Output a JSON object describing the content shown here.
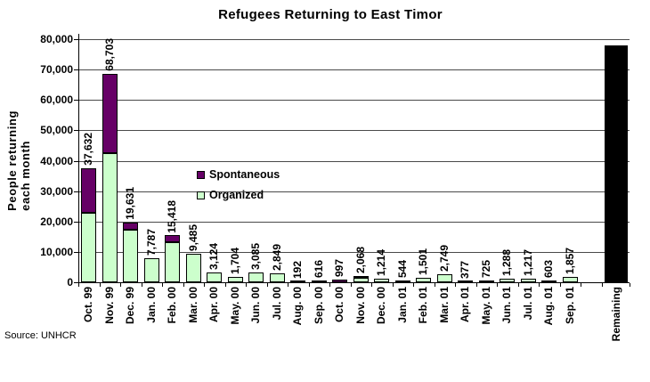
{
  "chart_data": {
    "type": "bar",
    "stacked": true,
    "title": "Refugees Returning to East Timor",
    "ylabel_lines": [
      "People returning",
      "each month"
    ],
    "source": "Source: UNHCR",
    "y_axis": {
      "min": 0,
      "max": 80000,
      "step": 10000,
      "tick_labels": [
        "0",
        "10,000",
        "20,000",
        "30,000",
        "40,000",
        "50,000",
        "60,000",
        "70,000",
        "80,000"
      ]
    },
    "grid": "horizontal",
    "legend": {
      "position": "inside-middle-left",
      "entries": [
        {
          "name": "Spontaneous",
          "color": "#660066"
        },
        {
          "name": "Organized",
          "color": "#CCFFCC"
        }
      ]
    },
    "categories": [
      "Oct. 99",
      "Nov. 99",
      "Dec. 99",
      "Jan. 00",
      "Feb. 00",
      "Mar. 00",
      "Apr. 00",
      "May. 00",
      "Jun. 00",
      "Jul. 00",
      "Aug. 00",
      "Sep. 00",
      "Oct. 00",
      "Nov. 00",
      "Dec. 00",
      "Jan. 01",
      "Feb. 01",
      "Mar. 01",
      "Apr. 01",
      "May. 01",
      "Jun. 01",
      "Jul. 01",
      "Aug. 01",
      "Sep. 01"
    ],
    "series": [
      {
        "name": "Organized",
        "color": "#CCFFCC",
        "values": [
          23000,
          42400,
          17200,
          7787,
          13300,
          9485,
          3124,
          1704,
          3085,
          2849,
          192,
          0,
          0,
          1500,
          1214,
          544,
          1501,
          2749,
          377,
          725,
          1288,
          1217,
          603,
          1857
        ]
      },
      {
        "name": "Spontaneous",
        "color": "#660066",
        "values": [
          14632,
          26303,
          2431,
          0,
          2118,
          0,
          0,
          0,
          0,
          0,
          0,
          616,
          997,
          568,
          0,
          0,
          0,
          0,
          0,
          0,
          0,
          0,
          0,
          0
        ]
      }
    ],
    "totals_labels": [
      "37,632",
      "68,703",
      "19,631",
      "7,787",
      "15,418",
      "9,485",
      "3,124",
      "1,704",
      "3,085",
      "2,849",
      "192",
      "616",
      "997",
      "2,068",
      "1,214",
      "544",
      "1,501",
      "2,749",
      "377",
      "725",
      "1,288",
      "1,217",
      "603",
      "1,857"
    ],
    "remaining": {
      "label": "Remaining",
      "value": 78000,
      "color": "#000000"
    }
  }
}
